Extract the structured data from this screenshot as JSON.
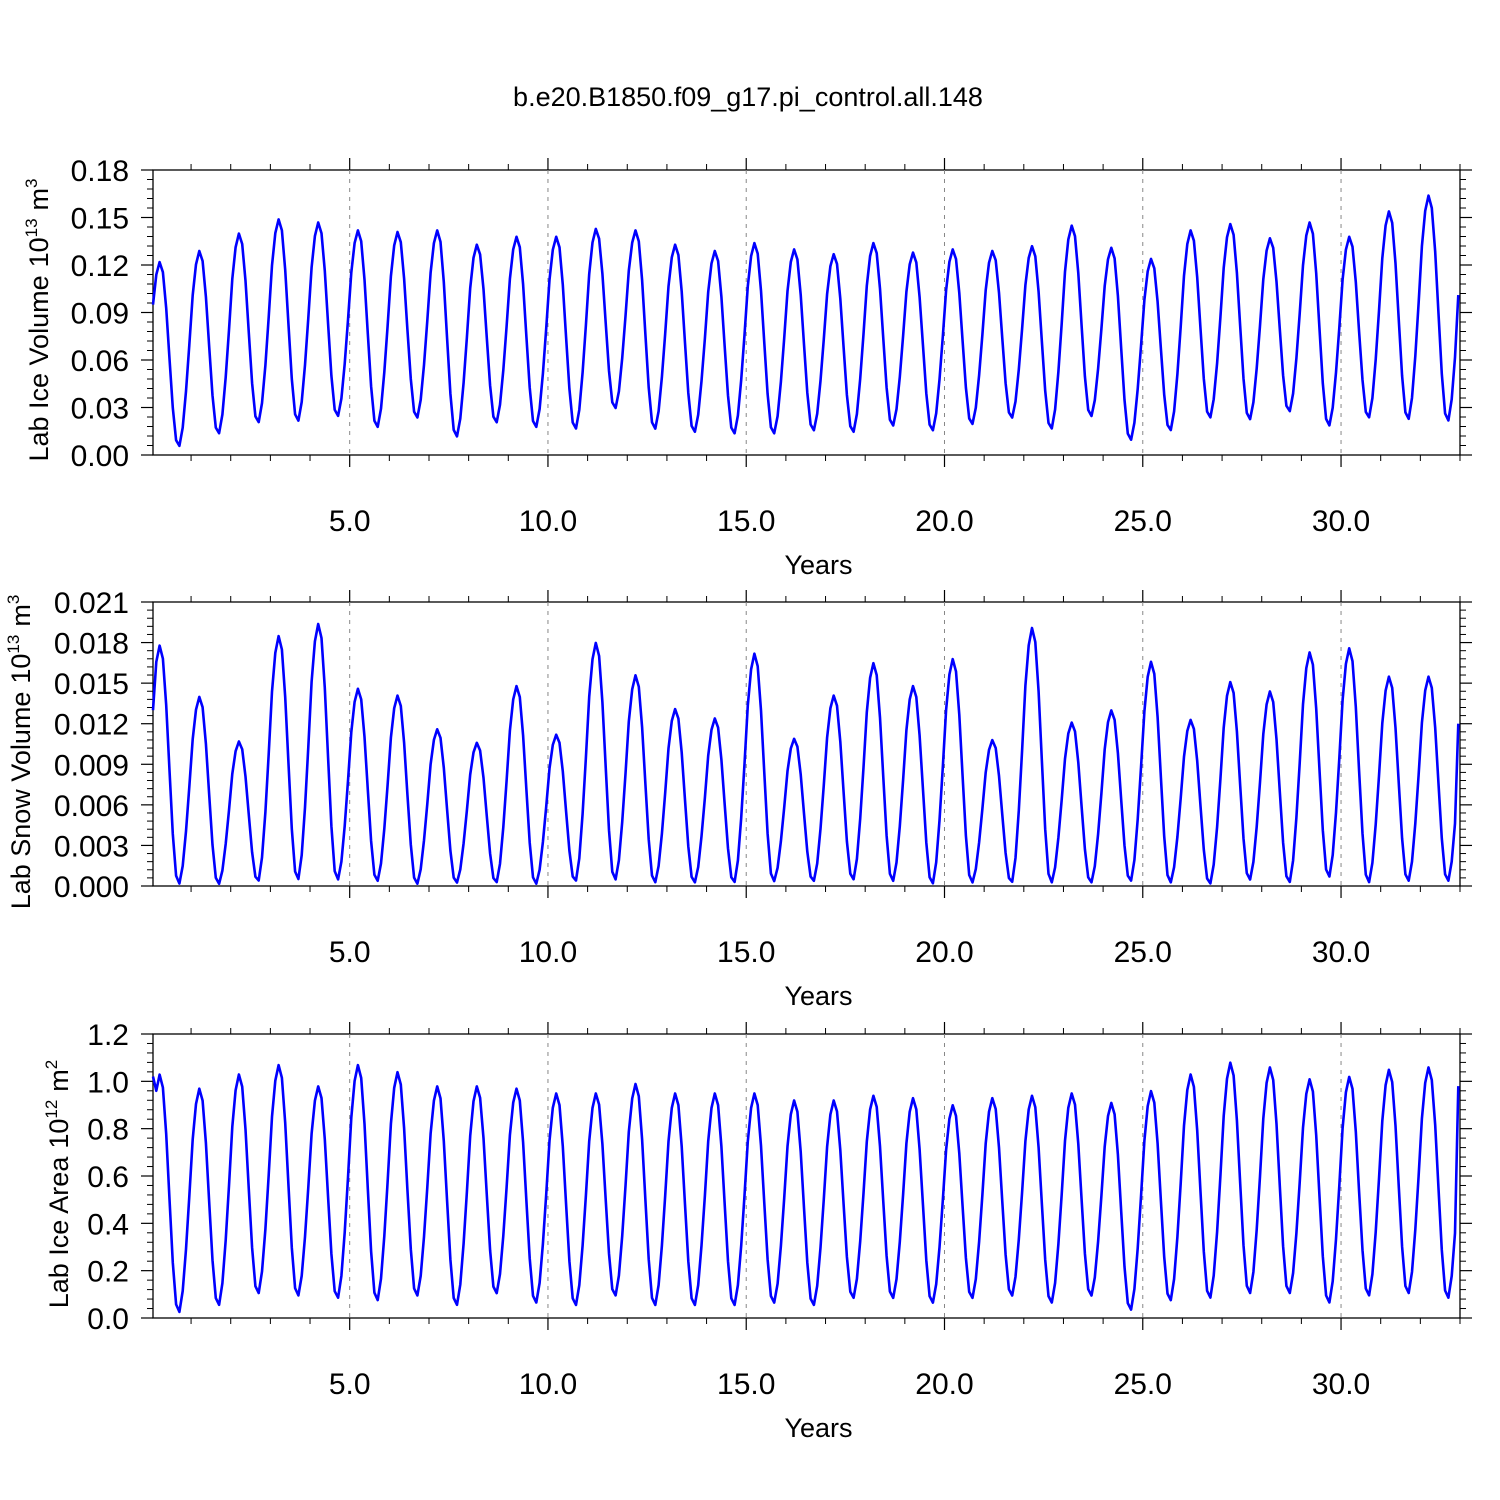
{
  "title": "b.e20.B1850.f09_g17.pi_control.all.148",
  "chart_data": [
    {
      "type": "line",
      "ylabel": "Lab Ice Volume",
      "yunit_base": "10",
      "yunit_exp": "13",
      "yunit_tail": "m",
      "yunit_tail_exp": "3",
      "xlabel": "Years",
      "xlim": [
        0.04,
        33.0
      ],
      "ylim": [
        0.0,
        0.18
      ],
      "xticks": [
        "5.0",
        "10.0",
        "15.0",
        "20.0",
        "25.0",
        "30.0"
      ],
      "yticks": [
        "0.00",
        "0.03",
        "0.06",
        "0.09",
        "0.12",
        "0.15",
        "0.18"
      ],
      "grid": "dashed vertical at major x ticks",
      "series": [
        {
          "color": "#0000ff",
          "peaks": [
            0.122,
            0.129,
            0.14,
            0.149,
            0.147,
            0.142,
            0.141,
            0.142,
            0.133,
            0.138,
            0.138,
            0.143,
            0.142,
            0.133,
            0.129,
            0.134,
            0.13,
            0.127,
            0.134,
            0.128,
            0.13,
            0.129,
            0.132,
            0.145,
            0.131,
            0.124,
            0.142,
            0.146,
            0.137,
            0.147,
            0.138,
            0.154,
            0.164
          ],
          "troughs": [
            0.005,
            0.013,
            0.02,
            0.021,
            0.024,
            0.017,
            0.023,
            0.011,
            0.02,
            0.017,
            0.016,
            0.029,
            0.016,
            0.014,
            0.013,
            0.013,
            0.015,
            0.014,
            0.018,
            0.015,
            0.019,
            0.023,
            0.016,
            0.024,
            0.009,
            0.015,
            0.023,
            0.022,
            0.027,
            0.018,
            0.023,
            0.022,
            0.021
          ],
          "start_value": 0.095,
          "end_value": 0.101
        }
      ]
    },
    {
      "type": "line",
      "ylabel": "Lab Snow Volume",
      "yunit_base": "10",
      "yunit_exp": "13",
      "yunit_tail": "m",
      "yunit_tail_exp": "3",
      "xlabel": "Years",
      "xlim": [
        0.04,
        33.0
      ],
      "ylim": [
        0.0,
        0.021
      ],
      "xticks": [
        "5.0",
        "10.0",
        "15.0",
        "20.0",
        "25.0",
        "30.0"
      ],
      "yticks": [
        "0.000",
        "0.003",
        "0.006",
        "0.009",
        "0.012",
        "0.015",
        "0.018",
        "0.021"
      ],
      "grid": "dashed vertical at major x ticks",
      "series": [
        {
          "color": "#0000ff",
          "peaks": [
            0.0178,
            0.014,
            0.0107,
            0.0185,
            0.0194,
            0.0146,
            0.0141,
            0.0116,
            0.0106,
            0.0148,
            0.0112,
            0.018,
            0.0156,
            0.0131,
            0.0124,
            0.0172,
            0.0109,
            0.0141,
            0.0165,
            0.0148,
            0.0168,
            0.0108,
            0.0191,
            0.0121,
            0.013,
            0.0166,
            0.0123,
            0.0151,
            0.0144,
            0.0173,
            0.0176,
            0.0155
          ],
          "troughs": [
            0.0001,
            0.0001,
            0.0003,
            0.0004,
            0.0004,
            0.0003,
            0.0001,
            0.0002,
            0.0002,
            0.0001,
            0.0003,
            0.0004,
            0.0002,
            0.0002,
            0.0002,
            0.0003,
            0.0003,
            0.0004,
            0.0003,
            0.0001,
            0.0002,
            0.0002,
            0.0002,
            0.0002,
            0.0003,
            0.0002,
            0.0001,
            0.0004,
            0.0002,
            0.0006,
            0.0002,
            0.0003
          ],
          "start_value": 0.013,
          "end_value": 0.012
        }
      ]
    },
    {
      "type": "line",
      "ylabel": "Lab Ice Area",
      "yunit_base": "10",
      "yunit_exp": "12",
      "yunit_tail": "m",
      "yunit_tail_exp": "2",
      "xlabel": "Years",
      "xlim": [
        0.04,
        33.0
      ],
      "ylim": [
        0.0,
        1.2
      ],
      "xticks": [
        "5.0",
        "10.0",
        "15.0",
        "20.0",
        "25.0",
        "30.0"
      ],
      "yticks": [
        "0.0",
        "0.2",
        "0.4",
        "0.6",
        "0.8",
        "1.0",
        "1.2"
      ],
      "grid": "dashed vertical at major x ticks",
      "series": [
        {
          "color": "#0000ff",
          "peaks": [
            1.03,
            0.97,
            1.03,
            1.07,
            0.98,
            1.07,
            1.04,
            0.98,
            0.98,
            0.97,
            0.95,
            0.95,
            0.99,
            0.95,
            0.95,
            0.95,
            0.92,
            0.92,
            0.94,
            0.93,
            0.9,
            0.93,
            0.94,
            0.95,
            0.91,
            0.96,
            1.03,
            1.08,
            1.06,
            1.01,
            1.02,
            1.05,
            1.06
          ],
          "troughs": [
            0.02,
            0.05,
            0.1,
            0.09,
            0.08,
            0.07,
            0.09,
            0.05,
            0.1,
            0.06,
            0.05,
            0.09,
            0.05,
            0.05,
            0.05,
            0.06,
            0.05,
            0.08,
            0.08,
            0.06,
            0.08,
            0.09,
            0.06,
            0.09,
            0.03,
            0.07,
            0.08,
            0.1,
            0.1,
            0.06,
            0.09,
            0.1,
            0.08
          ],
          "start_value": 1.02,
          "end_value": 0.98
        }
      ]
    }
  ]
}
